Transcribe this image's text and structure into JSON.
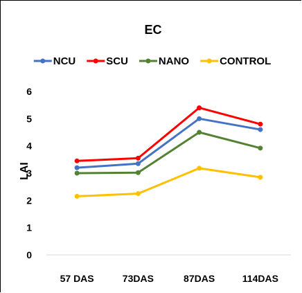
{
  "chart_data": {
    "type": "line",
    "title": "EC",
    "xlabel": "",
    "ylabel": "LAI",
    "categories": [
      "57 DAS",
      "73DAS",
      "87DAS",
      "114DAS"
    ],
    "ylim": [
      0,
      6
    ],
    "yticks": [
      0,
      1,
      2,
      3,
      4,
      5,
      6
    ],
    "grid": false,
    "legend_position": "top",
    "series": [
      {
        "name": "NCU",
        "color": "#4472C4",
        "values": [
          3.2,
          3.35,
          5.0,
          4.6
        ]
      },
      {
        "name": "SCU",
        "color": "#FF0000",
        "values": [
          3.45,
          3.55,
          5.4,
          4.8
        ]
      },
      {
        "name": "NANO",
        "color": "#548235",
        "values": [
          3.0,
          3.02,
          4.5,
          3.92
        ]
      },
      {
        "name": "CONTROL",
        "color": "#FFC000",
        "values": [
          2.15,
          2.25,
          3.18,
          2.85
        ]
      }
    ]
  }
}
